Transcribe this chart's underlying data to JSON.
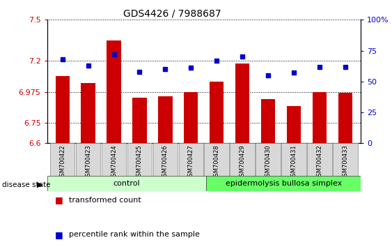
{
  "title": "GDS4426 / 7988687",
  "categories": [
    "GSM700422",
    "GSM700423",
    "GSM700424",
    "GSM700425",
    "GSM700426",
    "GSM700427",
    "GSM700428",
    "GSM700429",
    "GSM700430",
    "GSM700431",
    "GSM700432",
    "GSM700433"
  ],
  "bar_values": [
    7.09,
    7.04,
    7.35,
    6.93,
    6.94,
    6.975,
    7.05,
    7.18,
    6.92,
    6.87,
    6.975,
    6.97
  ],
  "percentile_values": [
    68,
    63,
    72,
    58,
    60,
    61,
    67,
    70,
    55,
    57,
    62,
    62
  ],
  "ylim": [
    6.6,
    7.5
  ],
  "yticks": [
    6.6,
    6.75,
    6.975,
    7.2,
    7.5
  ],
  "ytick_labels": [
    "6.6",
    "6.75",
    "6.975",
    "7.2",
    "7.5"
  ],
  "right_yticks": [
    0,
    25,
    50,
    75,
    100
  ],
  "right_ytick_labels": [
    "0",
    "25",
    "50",
    "75",
    "100%"
  ],
  "bar_color": "#cc0000",
  "percentile_color": "#0000cc",
  "grid_color": "#000000",
  "bar_width": 0.55,
  "control_label": "control",
  "disease_label": "epidermolysis bullosa simplex",
  "disease_state_label": "disease state",
  "n_control": 6,
  "n_disease": 6,
  "legend_bar_label": "transformed count",
  "legend_pct_label": "percentile rank within the sample",
  "control_color": "#ccffcc",
  "disease_color": "#66ff66",
  "xlabel_color": "#cc0000",
  "right_axis_color": "#0000cc",
  "bg_color": "#ffffff"
}
